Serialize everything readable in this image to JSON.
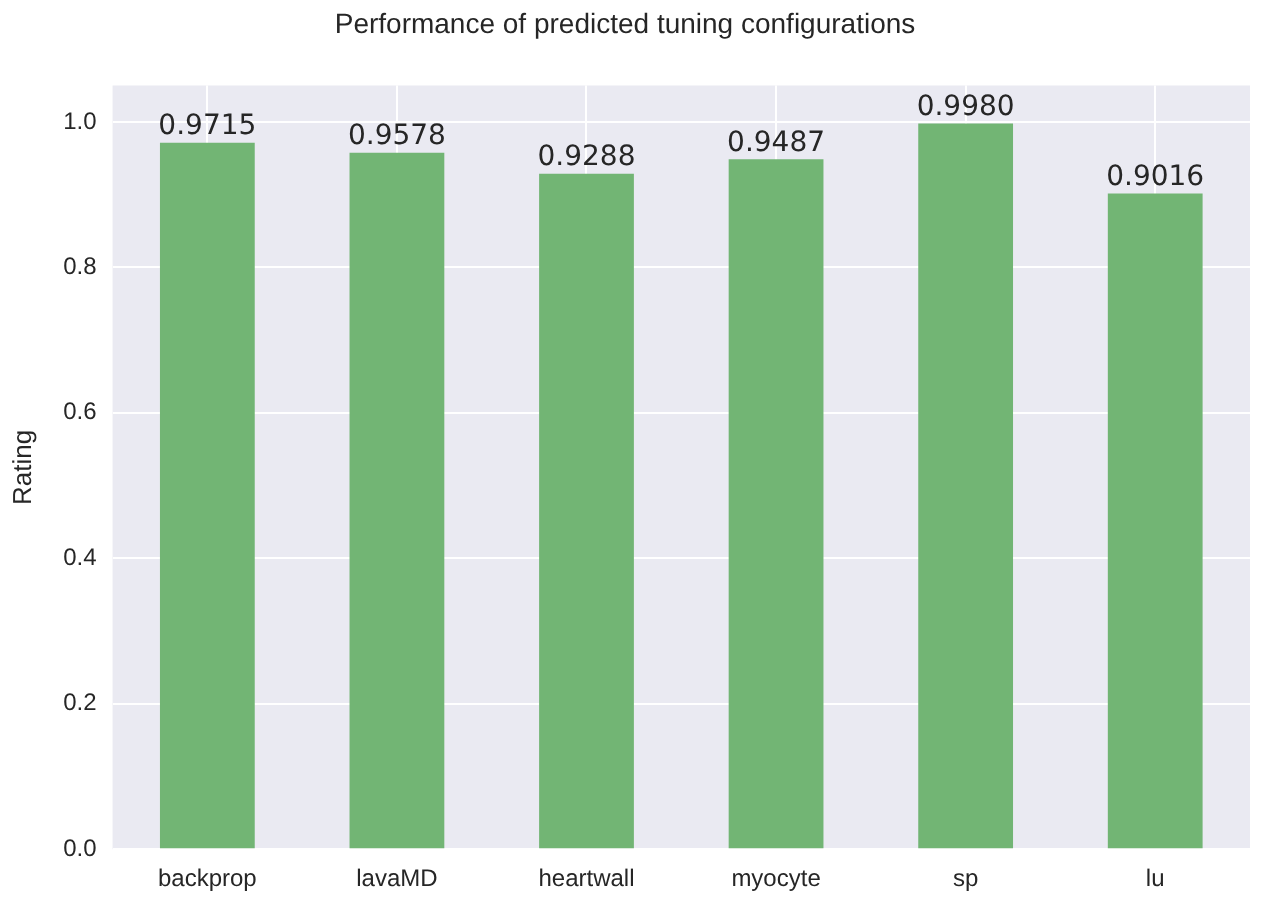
{
  "chart_data": {
    "type": "bar",
    "title": "Performance of predicted tuning configurations",
    "ylabel": "Rating",
    "categories": [
      "backprop",
      "lavaMD",
      "heartwall",
      "myocyte",
      "sp",
      "lu"
    ],
    "values": [
      0.9715,
      0.9578,
      0.9288,
      0.9487,
      0.998,
      0.9016
    ],
    "value_labels": [
      "0.9715",
      "0.9578",
      "0.9288",
      "0.9487",
      "0.9980",
      "0.9016"
    ],
    "color": "#72b574",
    "ylim": [
      0,
      1.05
    ],
    "yticks": [
      {
        "value": 0,
        "label": "0.0"
      },
      {
        "value": 0.2,
        "label": "0.2"
      },
      {
        "value": 0.4,
        "label": "0.4"
      },
      {
        "value": 0.6,
        "label": "0.6"
      },
      {
        "value": 0.8,
        "label": "0.8"
      },
      {
        "value": 1,
        "label": "1.0"
      }
    ],
    "grid": true,
    "legend": false
  }
}
